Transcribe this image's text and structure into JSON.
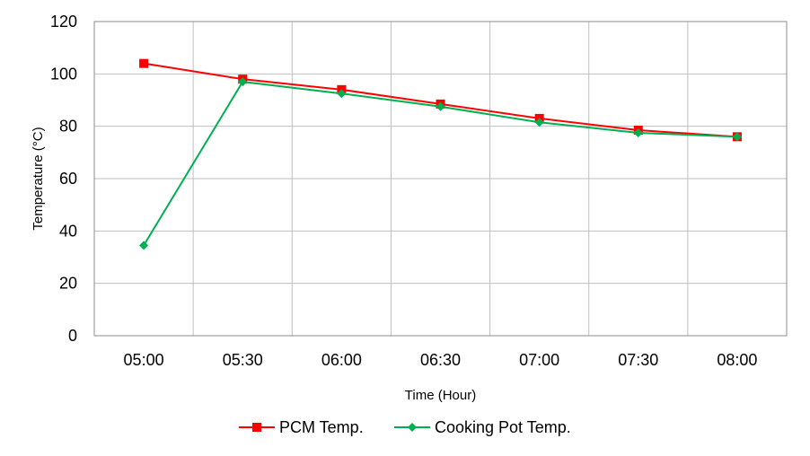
{
  "chart_data": {
    "type": "line",
    "xlabel": "Time (Hour)",
    "ylabel": "Temperature (°C)",
    "categories": [
      "05:00",
      "05:30",
      "06:00",
      "06:30",
      "07:00",
      "07:30",
      "08:00"
    ],
    "ylim": [
      0,
      120
    ],
    "yticks": [
      0,
      20,
      40,
      60,
      80,
      100,
      120
    ],
    "grid": true,
    "legend_position": "bottom",
    "series": [
      {
        "name": "PCM Temp.",
        "values": [
          104,
          98,
          94,
          88.5,
          83,
          78.5,
          76
        ],
        "color": "#ff0000",
        "marker": "square"
      },
      {
        "name": "Cooking Pot Temp.",
        "values": [
          34.5,
          97,
          92.5,
          87.5,
          81.5,
          77.5,
          76
        ],
        "color": "#00b050",
        "marker": "diamond"
      }
    ]
  }
}
